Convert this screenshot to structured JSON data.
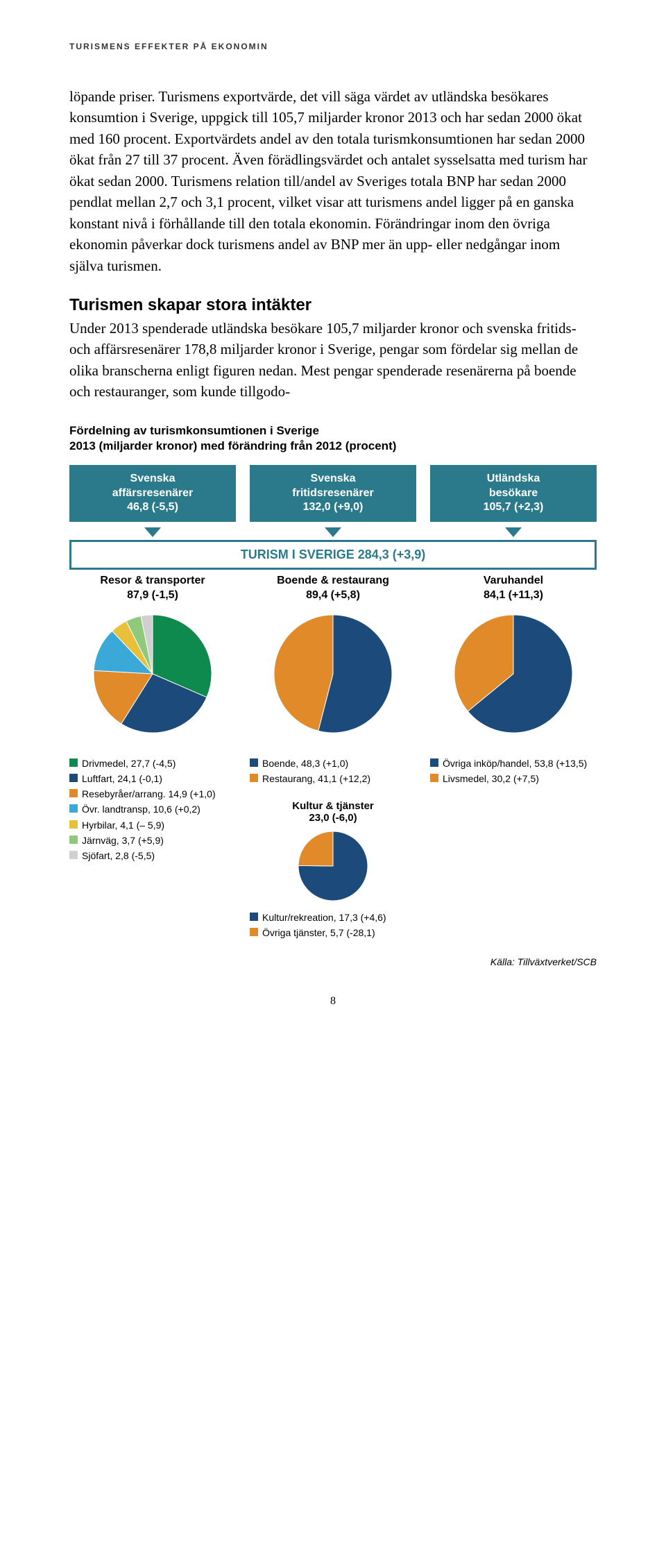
{
  "header_label": "TURISMENS EFFEKTER PÅ EKONOMIN",
  "para1": "löpande priser. Turismens exportvärde, det vill säga värdet av utländska besökares konsumtion i Sverige, uppgick till 105,7 miljarder kronor 2013 och har sedan 2000 ökat med 160 procent. Exportvärdets andel av den totala turismkonsumtionen har sedan 2000 ökat från 27 till 37 procent. Även förädlingsvärdet och antalet sysselsatta med turism har ökat sedan 2000. Turismens relation till/andel av Sveriges totala BNP har sedan 2000 pendlat mellan 2,7 och 3,1 procent, vilket visar att turismens andel ligger på en ganska konstant nivå i förhållande till den totala ekonomin. Förändringar inom den övriga ekonomin påverkar dock turismens andel av BNP mer än upp- eller nedgångar inom själva turismen.",
  "section_heading": "Turismen skapar stora intäkter",
  "para2": "Under 2013 spenderade utländska besökare 105,7 miljarder kronor och svenska fritids- och affärsresenärer 178,8 miljarder kronor i Sverige, pengar som fördelar sig mellan de olika branscherna enligt figuren nedan. Mest pengar spenderade resenärerna på boende och restauranger, som kunde tillgodo-",
  "chart_title_l1": "Fördelning av turismkonsumtionen i Sverige",
  "chart_title_l2": "2013 (miljarder kronor) med förändring från 2012 (procent)",
  "box1_l1": "Svenska",
  "box1_l2": "affärsresenärer",
  "box1_l3": "46,8 (-5,5)",
  "box2_l1": "Svenska",
  "box2_l2": "fritidsresenärer",
  "box2_l3": "132,0 (+9,0)",
  "box3_l1": "Utländska",
  "box3_l2": "besökare",
  "box3_l3": "105,7 (+2,3)",
  "wide_bar": "TURISM I SVERIGE   284,3 (+3,9)",
  "sub1_l1": "Resor & transporter",
  "sub1_l2": "87,9 (-1,5)",
  "sub2_l1": "Boende & restaurang",
  "sub2_l2": "89,4 (+5,8)",
  "sub3_l1": "Varuhandel",
  "sub3_l2": "84,1 (+11,3)",
  "colors": {
    "teal": "#2a7a8c",
    "green": "#0f8a4f",
    "dkblue": "#1c4a7a",
    "orange": "#e08a2a",
    "ltblue": "#3aa9d8",
    "yellow": "#e8c03a",
    "ltgreen": "#8fc97a",
    "grey": "#d0d0d0",
    "white": "#ffffff"
  },
  "pie1": {
    "slices": [
      {
        "label": "Drivmedel, 27,7 (-4,5)",
        "value": 27.7,
        "color": "#0f8a4f"
      },
      {
        "label": "Luftfart, 24,1 (-0,1)",
        "value": 24.1,
        "color": "#1c4a7a"
      },
      {
        "label": "Resebyråer/arrang. 14,9 (+1,0)",
        "value": 14.9,
        "color": "#e08a2a"
      },
      {
        "label": "Övr. landtransp, 10,6 (+0,2)",
        "value": 10.6,
        "color": "#3aa9d8"
      },
      {
        "label": "Hyrbilar, 4,1 (– 5,9)",
        "value": 4.1,
        "color": "#e8c03a"
      },
      {
        "label": "Järnväg, 3,7 (+5,9)",
        "value": 3.7,
        "color": "#8fc97a"
      },
      {
        "label": "Sjöfart, 2,8 (-5,5)",
        "value": 2.8,
        "color": "#d0d0d0"
      }
    ]
  },
  "pie2": {
    "slices": [
      {
        "label": "Boende, 48,3 (+1,0)",
        "value": 48.3,
        "color": "#1c4a7a"
      },
      {
        "label": "Restaurang, 41,1 (+12,2)",
        "value": 41.1,
        "color": "#e08a2a"
      }
    ]
  },
  "pie3": {
    "slices": [
      {
        "label": "Övriga inköp/handel, 53,8 (+13,5)",
        "value": 53.8,
        "color": "#1c4a7a"
      },
      {
        "label": "Livsmedel, 30,2 (+7,5)",
        "value": 30.2,
        "color": "#e08a2a"
      }
    ]
  },
  "mini_heading_l1": "Kultur & tjänster",
  "mini_heading_l2": "23,0 (-6,0)",
  "pie4": {
    "slices": [
      {
        "label": "Kultur/rekreation, 17,3 (+4,6)",
        "value": 17.3,
        "color": "#1c4a7a"
      },
      {
        "label": "Övriga tjänster, 5,7 (-28,1)",
        "value": 5.7,
        "color": "#e08a2a"
      }
    ]
  },
  "source": "Källa: Tillväxtverket/SCB",
  "page_num": "8"
}
